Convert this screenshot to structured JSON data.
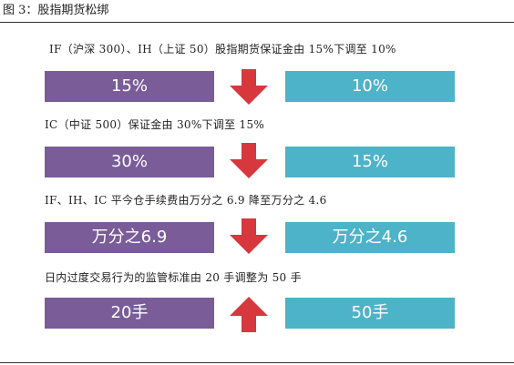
{
  "figure": {
    "title": "图 3：股指期货松绑"
  },
  "colors": {
    "before_box": "#7a5c99",
    "after_box": "#4db3c8",
    "arrow": "#d6383e"
  },
  "rows": [
    {
      "caption": "IF（沪深 300）、IH（上证 50）股指期货保证金由 15%下调至 10%",
      "before": "15%",
      "after": "10%",
      "arrow_icon": "down-arrow-icon"
    },
    {
      "caption": "IC（中证 500）保证金由 30%下调至 15%",
      "before": "30%",
      "after": "15%",
      "arrow_icon": "down-arrow-icon"
    },
    {
      "caption": "IF、IH、IC 平今仓手续费由万分之 6.9 降至万分之 4.6",
      "before": "万分之6.9",
      "after": "万分之4.6",
      "arrow_icon": "down-arrow-icon"
    },
    {
      "caption": "日内过度交易行为的监管标准由 20 手调整为 50 手",
      "before": "20手",
      "after": "50手",
      "arrow_icon": "up-arrow-icon"
    }
  ]
}
